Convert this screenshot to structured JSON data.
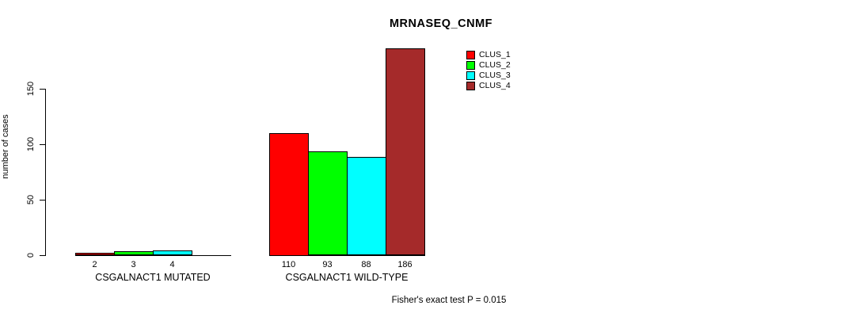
{
  "chart_data": {
    "type": "bar",
    "title": "MRNASEQ_CNMF",
    "ylabel": "number of cases",
    "ylim": [
      0,
      190
    ],
    "yticks": [
      0,
      50,
      100,
      150
    ],
    "grid": false,
    "legend_position": "top-right",
    "legend": [
      {
        "label": "CLUS_1",
        "color": "#FF0000"
      },
      {
        "label": "CLUS_2",
        "color": "#00FF00"
      },
      {
        "label": "CLUS_3",
        "color": "#00FFFF"
      },
      {
        "label": "CLUS_4",
        "color": "#A52A2A"
      }
    ],
    "groups": [
      {
        "label": "CSGALNACT1 MUTATED",
        "bars": [
          {
            "cluster": "CLUS_1",
            "value": 2,
            "value_label": "2",
            "color": "#FF0000"
          },
          {
            "cluster": "CLUS_2",
            "value": 3,
            "value_label": "3",
            "color": "#00FF00"
          },
          {
            "cluster": "CLUS_3",
            "value": 4,
            "value_label": "4",
            "color": "#00FFFF"
          },
          {
            "cluster": "CLUS_4",
            "value": 0,
            "value_label": "",
            "color": "#A52A2A"
          }
        ]
      },
      {
        "label": "CSGALNACT1 WILD-TYPE",
        "bars": [
          {
            "cluster": "CLUS_1",
            "value": 110,
            "value_label": "110",
            "color": "#FF0000"
          },
          {
            "cluster": "CLUS_2",
            "value": 93,
            "value_label": "93",
            "color": "#00FF00"
          },
          {
            "cluster": "CLUS_3",
            "value": 88,
            "value_label": "88",
            "color": "#00FFFF"
          },
          {
            "cluster": "CLUS_4",
            "value": 186,
            "value_label": "186",
            "color": "#A52A2A"
          }
        ]
      }
    ],
    "annotation": "Fisher's exact test P = 0.015"
  },
  "colors": {
    "axis": "#000000",
    "text": "#000000",
    "background": "#FFFFFF"
  }
}
